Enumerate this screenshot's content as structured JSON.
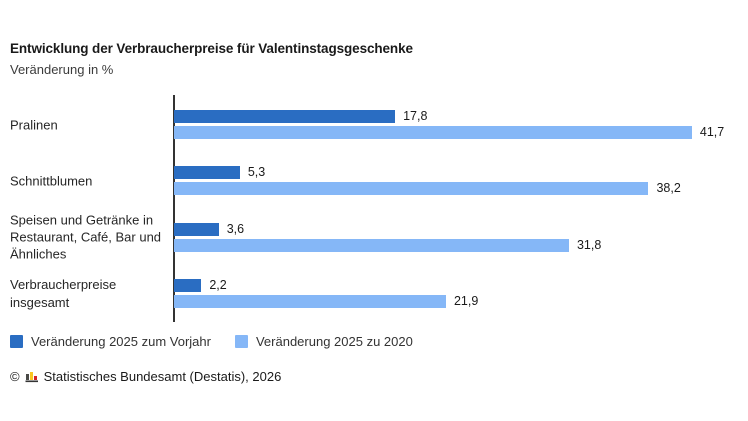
{
  "header": {
    "title": "Entwicklung der Verbraucherpreise für Valentinstagsgeschenke",
    "subtitle": "Veränderung in %"
  },
  "chart_data": {
    "type": "bar",
    "orientation": "horizontal",
    "title": "Entwicklung der Verbraucherpreise für Valentinstagsgeschenke",
    "subtitle": "Veränderung in %",
    "categories": [
      "Pralinen",
      "Schnittblumen",
      "Speisen und Getränke in Restaurant, Café, Bar und Ähnliches",
      "Verbraucherpreise insgesamt"
    ],
    "series": [
      {
        "name": "Veränderung 2025 zum Vorjahr",
        "color": "#2a6dc2",
        "values": [
          17.8,
          5.3,
          3.6,
          2.2
        ],
        "labels": [
          "17,8",
          "5,3",
          "3,6",
          "2,2"
        ]
      },
      {
        "name": "Veränderung 2025 zu 2020",
        "color": "#85b7f7",
        "values": [
          41.7,
          38.2,
          31.8,
          21.9
        ],
        "labels": [
          "41,7",
          "38,2",
          "31,8",
          "21,9"
        ]
      }
    ],
    "xlim": [
      0,
      46
    ],
    "grid": false,
    "legend_position": "bottom",
    "value_labels_shown": true
  },
  "footer": {
    "copyright_symbol": "©",
    "source": "Statistisches Bundesamt (Destatis), 2026"
  },
  "colors": {
    "series_dark": "#2a6dc2",
    "series_light": "#85b7f7",
    "axis": "#333333",
    "text": "#1a1a1a"
  }
}
